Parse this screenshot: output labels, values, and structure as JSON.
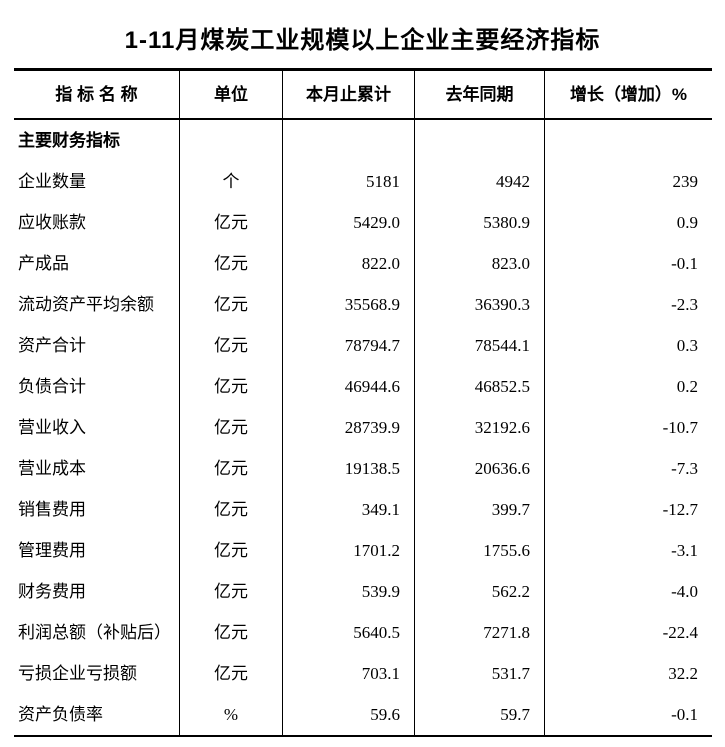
{
  "title": "1-11月煤炭工业规模以上企业主要经济指标",
  "table": {
    "headers": [
      "指 标 名 称",
      "单位",
      "本月止累计",
      "去年同期",
      "增长（增加）%"
    ],
    "rows": [
      {
        "name": "主要财务指标",
        "unit": "",
        "current": "",
        "last_year": "",
        "growth": "",
        "bold": true
      },
      {
        "name": "企业数量",
        "unit": "个",
        "current": "5181",
        "last_year": "4942",
        "growth": "239",
        "bold": false
      },
      {
        "name": "应收账款",
        "unit": "亿元",
        "current": "5429.0",
        "last_year": "5380.9",
        "growth": "0.9",
        "bold": false
      },
      {
        "name": "产成品",
        "unit": "亿元",
        "current": "822.0",
        "last_year": "823.0",
        "growth": "-0.1",
        "bold": false
      },
      {
        "name": "流动资产平均余额",
        "unit": "亿元",
        "current": "35568.9",
        "last_year": "36390.3",
        "growth": "-2.3",
        "bold": false
      },
      {
        "name": "资产合计",
        "unit": "亿元",
        "current": "78794.7",
        "last_year": "78544.1",
        "growth": "0.3",
        "bold": false
      },
      {
        "name": "负债合计",
        "unit": "亿元",
        "current": "46944.6",
        "last_year": "46852.5",
        "growth": "0.2",
        "bold": false
      },
      {
        "name": "营业收入",
        "unit": "亿元",
        "current": "28739.9",
        "last_year": "32192.6",
        "growth": "-10.7",
        "bold": false
      },
      {
        "name": "营业成本",
        "unit": "亿元",
        "current": "19138.5",
        "last_year": "20636.6",
        "growth": "-7.3",
        "bold": false
      },
      {
        "name": "销售费用",
        "unit": "亿元",
        "current": "349.1",
        "last_year": "399.7",
        "growth": "-12.7",
        "bold": false
      },
      {
        "name": "管理费用",
        "unit": "亿元",
        "current": "1701.2",
        "last_year": "1755.6",
        "growth": "-3.1",
        "bold": false
      },
      {
        "name": "财务费用",
        "unit": "亿元",
        "current": "539.9",
        "last_year": "562.2",
        "growth": "-4.0",
        "bold": false
      },
      {
        "name": "利润总额（补贴后）",
        "unit": "亿元",
        "current": "5640.5",
        "last_year": "7271.8",
        "growth": "-22.4",
        "bold": false
      },
      {
        "name": "亏损企业亏损额",
        "unit": "亿元",
        "current": "703.1",
        "last_year": "531.7",
        "growth": "32.2",
        "bold": false
      },
      {
        "name": "资产负债率",
        "unit": "%",
        "current": "59.6",
        "last_year": "59.7",
        "growth": "-0.1",
        "bold": false
      }
    ]
  },
  "colors": {
    "text": "#000000",
    "background": "#ffffff",
    "rule": "#000000"
  }
}
